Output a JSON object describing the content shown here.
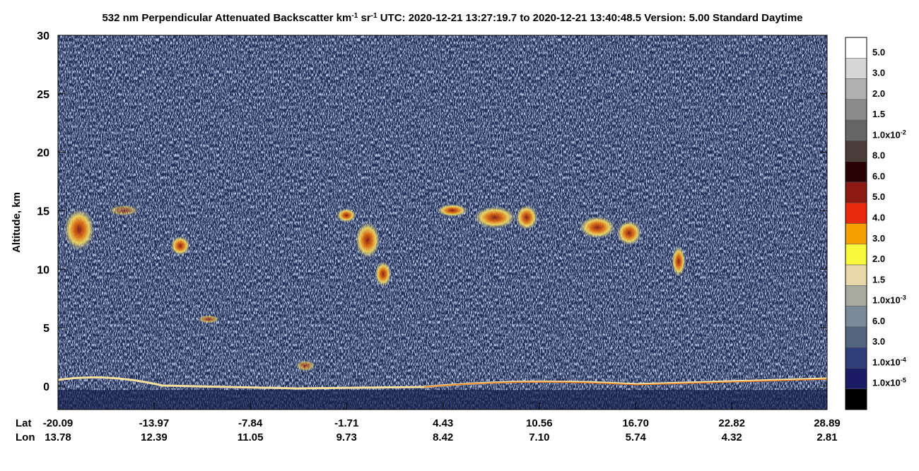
{
  "chart_data": {
    "type": "curtain",
    "title_segments": [
      {
        "text": "532 nm Perpendicular Attenuated Backscatter km"
      },
      {
        "text": "-1",
        "sup": true
      },
      {
        "text": " sr"
      },
      {
        "text": "-1",
        "sup": true
      },
      {
        "text": "  UTC: 2020-12-21 13:27:19.7 to 2020-12-21 13:40:48.5  Version: 5.00 Standard Daytime"
      }
    ],
    "ylabel": "Altitude, km",
    "ylim": [
      -2,
      30
    ],
    "yticks": [
      0,
      5,
      10,
      15,
      20,
      25,
      30
    ],
    "xlim": [
      -20.09,
      28.89
    ],
    "xticks": [
      -20.09,
      -13.97,
      -7.84,
      -1.71,
      4.43,
      10.56,
      {
        "value": 16.7,
        "label": "16.70"
      },
      22.82,
      28.89
    ],
    "x_row_label": "Lat",
    "lon_row_label": "Lon",
    "lon_labels": [
      13.78,
      12.39,
      11.05,
      9.73,
      8.42,
      {
        "value": 7.1,
        "label": "7.10"
      },
      5.74,
      4.32,
      2.81
    ],
    "colorbar": {
      "colors": [
        "#ffffff",
        "#d6d6d6",
        "#b0b0b0",
        "#8c8c8c",
        "#666666",
        "#4a3c38",
        "#2a0404",
        "#8a1a12",
        "#e82a0c",
        "#f5a000",
        "#f8f83c",
        "#e8d8a8",
        "#a8aaa0",
        "#7a8a98",
        "#52647e",
        "#2e3e78",
        "#1c1c64",
        "#000000"
      ],
      "labels": [
        {
          "text": "5.0"
        },
        {
          "text": "3.0"
        },
        {
          "text": "2.0"
        },
        {
          "text": "1.5"
        },
        {
          "text": "1.0x10",
          "sup": "-2"
        },
        {
          "text": "8.0"
        },
        {
          "text": "6.0"
        },
        {
          "text": "5.0"
        },
        {
          "text": "4.0"
        },
        {
          "text": "3.0"
        },
        {
          "text": "2.0"
        },
        {
          "text": "1.5"
        },
        {
          "text": "1.0x10",
          "sup": "-3"
        },
        {
          "text": "6.0"
        },
        {
          "text": "3.0"
        },
        {
          "text": "1.0x10",
          "sup": "-4"
        },
        {
          "text": "1.0x10",
          "sup": "-5"
        }
      ]
    }
  }
}
